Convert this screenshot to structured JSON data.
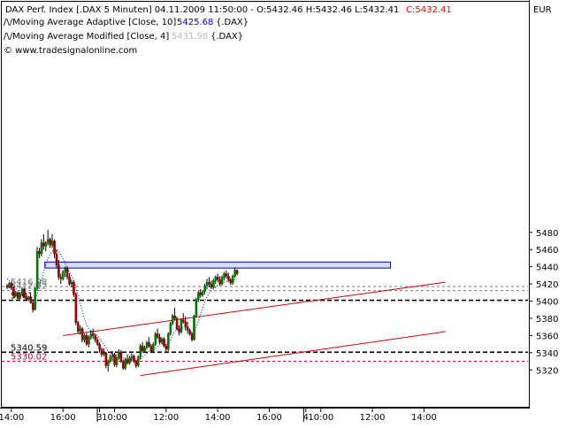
{
  "chart_data": {
    "type": "candlestick",
    "title": "DAX Perf. Index [.DAX  5 Minuten]",
    "header": {
      "title_line": "DAX Perf. Index [.DAX  5 Minuten] 04.11.2009 11:50:00 - O:5432.46 H:5432.46 L:5432.41",
      "close_value": "C:5432.41",
      "ind1_label": "/\\/Moving Average Adaptive [Close, 10]",
      "ind1_value": "5425.68",
      "ind1_suffix": "{.DAX}",
      "ind2_label": "/\\/Moving Average Modified [Close, 4]",
      "ind2_value": "5431.98",
      "ind2_suffix": "{.DAX}",
      "copyright": "© www.tradesignalonline.com",
      "currency": "EUR"
    },
    "y_axis": {
      "range": [
        5310,
        5485
      ],
      "ticks": [
        5320,
        5340,
        5360,
        5380,
        5400,
        5420,
        5440,
        5460,
        5480
      ]
    },
    "x_axis": {
      "ticks": [
        {
          "label": "14:00",
          "i": 2
        },
        {
          "label": "16:00",
          "i": 26
        },
        {
          "label": "3",
          "i": 43
        },
        {
          "label": "10:00",
          "i": 50
        },
        {
          "label": "12:00",
          "i": 74
        },
        {
          "label": "14:00",
          "i": 98
        },
        {
          "label": "16:00",
          "i": 122
        },
        {
          "label": "4",
          "i": 139
        },
        {
          "label": "10:00",
          "i": 146
        },
        {
          "label": "12:00",
          "i": 170
        },
        {
          "label": "14:00",
          "i": 194
        }
      ],
      "day_separators": [
        42,
        138
      ]
    },
    "levels": [
      {
        "value": 5416.98,
        "label": "5416.98",
        "style": "dashed",
        "color": "#777777"
      },
      {
        "value": 5412.22,
        "label": "5412.22",
        "style": "dashed",
        "color": "#777777"
      },
      {
        "value": 5401.0,
        "label": "5401",
        "style": "dashed-bold",
        "color": "#000000"
      },
      {
        "value": 5340.59,
        "label": "5340.59",
        "style": "dashed-bold",
        "color": "#000000"
      },
      {
        "value": 5330.02,
        "label": "5330.02",
        "style": "dashed",
        "color": "#cc0033"
      }
    ],
    "resistance_zone": {
      "i_start": 18,
      "i_end": 178,
      "low": 5438.5,
      "high": 5445.5,
      "fill": "#d8dcf6",
      "stroke": "#0000cc"
    },
    "trend_lines": [
      {
        "name": "upper",
        "p1": [
          26,
          5359.9
        ],
        "p2": [
          204,
          5422.0
        ],
        "color": "#dd0000"
      },
      {
        "name": "lower",
        "p1": [
          62,
          5313.5
        ],
        "p2": [
          204,
          5364.6
        ],
        "color": "#dd0000"
      }
    ],
    "candles": [
      [
        5418.0,
        5420.0,
        5414.0,
        5416.0
      ],
      [
        5416.0,
        5422.0,
        5415.0,
        5421.0
      ],
      [
        5421.0,
        5423.0,
        5413.0,
        5415.0
      ],
      [
        5415.0,
        5417.0,
        5404.0,
        5406.0
      ],
      [
        5406.0,
        5412.0,
        5405.0,
        5410.0
      ],
      [
        5410.0,
        5411.0,
        5402.0,
        5403.0
      ],
      [
        5403.0,
        5410.0,
        5402.0,
        5408.0
      ],
      [
        5408.0,
        5416.0,
        5406.0,
        5414.0
      ],
      [
        5414.0,
        5415.0,
        5404.0,
        5405.0
      ],
      [
        5405.0,
        5407.0,
        5400.0,
        5402.0
      ],
      [
        5402.0,
        5406.0,
        5400.0,
        5405.0
      ],
      [
        5405.0,
        5406.0,
        5397.0,
        5398.0
      ],
      [
        5398.0,
        5400.0,
        5387.0,
        5390.0
      ],
      [
        5390.0,
        5416.0,
        5389.0,
        5415.0
      ],
      [
        5415.0,
        5463.0,
        5412.0,
        5458.0
      ],
      [
        5458.0,
        5462.0,
        5450.0,
        5455.0
      ],
      [
        5455.0,
        5472.0,
        5452.0,
        5468.0
      ],
      [
        5468.0,
        5478.0,
        5460.0,
        5464.0
      ],
      [
        5464.0,
        5470.0,
        5458.0,
        5468.0
      ],
      [
        5468.0,
        5483.0,
        5465.0,
        5472.0
      ],
      [
        5472.0,
        5474.0,
        5462.0,
        5465.0
      ],
      [
        5465.0,
        5478.0,
        5462.0,
        5470.0
      ],
      [
        5470.0,
        5472.0,
        5450.0,
        5455.0
      ],
      [
        5455.0,
        5460.0,
        5438.0,
        5442.0
      ],
      [
        5442.0,
        5448.0,
        5425.0,
        5428.0
      ],
      [
        5428.0,
        5432.0,
        5420.0,
        5426.0
      ],
      [
        5426.0,
        5436.0,
        5424.0,
        5434.0
      ],
      [
        5434.0,
        5440.0,
        5428.0,
        5438.0
      ],
      [
        5438.0,
        5440.0,
        5425.0,
        5428.0
      ],
      [
        5428.0,
        5432.0,
        5418.0,
        5420.0
      ],
      [
        5420.0,
        5425.0,
        5416.0,
        5422.0
      ],
      [
        5422.0,
        5424.0,
        5405.0,
        5408.0
      ],
      [
        5408.0,
        5410.0,
        5372.0,
        5375.0
      ],
      [
        5375.0,
        5377.0,
        5362.0,
        5365.0
      ],
      [
        5365.0,
        5372.0,
        5361.0,
        5368.0
      ],
      [
        5368.0,
        5370.0,
        5352.0,
        5355.0
      ],
      [
        5355.0,
        5362.0,
        5352.0,
        5360.0
      ],
      [
        5360.0,
        5363.0,
        5348.0,
        5350.0
      ],
      [
        5350.0,
        5360.0,
        5346.0,
        5358.0
      ],
      [
        5358.0,
        5366.0,
        5355.0,
        5362.0
      ],
      [
        5362.0,
        5368.0,
        5356.0,
        5360.0
      ],
      [
        5360.0,
        5362.0,
        5352.0,
        5355.0
      ],
      [
        5355.0,
        5358.0,
        5348.0,
        5350.0
      ],
      [
        5350.0,
        5352.0,
        5340.0,
        5344.0
      ],
      [
        5344.0,
        5346.0,
        5335.0,
        5338.0
      ],
      [
        5338.0,
        5345.0,
        5336.0,
        5340.0
      ],
      [
        5340.0,
        5341.0,
        5322.0,
        5325.0
      ],
      [
        5325.0,
        5332.0,
        5318.0,
        5330.0
      ],
      [
        5330.0,
        5338.0,
        5328.0,
        5335.0
      ],
      [
        5335.0,
        5342.0,
        5330.0,
        5338.0
      ],
      [
        5338.0,
        5340.0,
        5324.0,
        5326.0
      ],
      [
        5326.0,
        5336.0,
        5323.0,
        5334.0
      ],
      [
        5334.0,
        5344.0,
        5332.0,
        5341.0
      ],
      [
        5341.0,
        5343.0,
        5328.0,
        5330.0
      ],
      [
        5330.0,
        5332.0,
        5320.0,
        5322.0
      ],
      [
        5322.0,
        5334.0,
        5320.0,
        5332.0
      ],
      [
        5332.0,
        5338.0,
        5326.0,
        5328.0
      ],
      [
        5328.0,
        5336.0,
        5326.0,
        5334.0
      ],
      [
        5334.0,
        5339.0,
        5330.0,
        5336.0
      ],
      [
        5336.0,
        5338.0,
        5328.0,
        5330.0
      ],
      [
        5330.0,
        5332.0,
        5322.0,
        5325.0
      ],
      [
        5325.0,
        5337.0,
        5323.0,
        5335.0
      ],
      [
        5335.0,
        5350.0,
        5332.0,
        5348.0
      ],
      [
        5348.0,
        5352.0,
        5340.0,
        5342.0
      ],
      [
        5342.0,
        5348.0,
        5340.0,
        5346.0
      ],
      [
        5346.0,
        5354.0,
        5344.0,
        5352.0
      ],
      [
        5352.0,
        5358.0,
        5346.0,
        5348.0
      ],
      [
        5348.0,
        5350.0,
        5340.0,
        5342.0
      ],
      [
        5342.0,
        5352.0,
        5340.0,
        5350.0
      ],
      [
        5350.0,
        5364.0,
        5348.0,
        5362.0
      ],
      [
        5362.0,
        5368.0,
        5356.0,
        5358.0
      ],
      [
        5358.0,
        5362.0,
        5350.0,
        5352.0
      ],
      [
        5352.0,
        5358.0,
        5350.0,
        5356.0
      ],
      [
        5356.0,
        5358.0,
        5346.0,
        5348.0
      ],
      [
        5348.0,
        5350.0,
        5340.0,
        5344.0
      ],
      [
        5344.0,
        5364.0,
        5342.0,
        5362.0
      ],
      [
        5362.0,
        5376.0,
        5360.0,
        5374.0
      ],
      [
        5374.0,
        5385.0,
        5372.0,
        5383.0
      ],
      [
        5383.0,
        5392.0,
        5378.0,
        5380.0
      ],
      [
        5380.0,
        5382.0,
        5366.0,
        5368.0
      ],
      [
        5368.0,
        5372.0,
        5360.0,
        5364.0
      ],
      [
        5364.0,
        5380.0,
        5362.0,
        5378.0
      ],
      [
        5378.0,
        5386.0,
        5374.0,
        5376.0
      ],
      [
        5376.0,
        5382.0,
        5366.0,
        5370.0
      ],
      [
        5370.0,
        5376.0,
        5362.0,
        5366.0
      ],
      [
        5366.0,
        5368.0,
        5360.0,
        5362.0
      ],
      [
        5362.0,
        5364.0,
        5353.0,
        5355.0
      ],
      [
        5355.0,
        5384.0,
        5354.0,
        5383.0
      ],
      [
        5383.0,
        5404.0,
        5381.0,
        5402.0
      ],
      [
        5402.0,
        5412.0,
        5399.0,
        5410.0
      ],
      [
        5410.0,
        5414.0,
        5404.0,
        5407.0
      ],
      [
        5407.0,
        5413.0,
        5405.0,
        5411.0
      ],
      [
        5411.0,
        5420.0,
        5408.0,
        5418.0
      ],
      [
        5418.0,
        5426.0,
        5414.0,
        5422.0
      ],
      [
        5422.0,
        5428.0,
        5416.0,
        5420.0
      ],
      [
        5420.0,
        5424.0,
        5414.0,
        5416.0
      ],
      [
        5416.0,
        5426.0,
        5414.0,
        5424.0
      ],
      [
        5424.0,
        5430.0,
        5420.0,
        5428.0
      ],
      [
        5428.0,
        5432.0,
        5422.0,
        5425.0
      ],
      [
        5425.0,
        5429.0,
        5418.0,
        5420.0
      ],
      [
        5420.0,
        5430.0,
        5418.0,
        5428.0
      ],
      [
        5428.0,
        5434.0,
        5424.0,
        5432.0
      ],
      [
        5432.0,
        5436.0,
        5426.0,
        5429.0
      ],
      [
        5429.0,
        5433.0,
        5422.0,
        5425.0
      ],
      [
        5425.0,
        5427.0,
        5419.0,
        5421.0
      ],
      [
        5421.0,
        5431.0,
        5419.0,
        5429.0
      ],
      [
        5429.0,
        5439.0,
        5427.0,
        5436.0
      ],
      [
        5436.0,
        5437.0,
        5430.0,
        5432.0
      ]
    ],
    "moving_average_adaptive": [
      5426.0,
      5424.0,
      5421.0,
      5418.0,
      5415.0,
      5412.0,
      5410.0,
      5408.0,
      5406.0,
      5404.0,
      5403.0,
      5402.0,
      5401.0,
      5403.0,
      5408.0,
      5416.0,
      5425.0,
      5434.0,
      5442.0,
      5449.0,
      5454.0,
      5458.0,
      5460.0,
      5460.0,
      5458.0,
      5454.0,
      5449.0,
      5444.0,
      5439.0,
      5434.0,
      5429.0,
      5424.0,
      5416.0,
      5407.0,
      5397.0,
      5388.0,
      5380.0,
      5373.0,
      5368.0,
      5365.0,
      5363.0,
      5362.0,
      5360.0,
      5357.0,
      5353.0,
      5350.0,
      5346.0,
      5342.0,
      5340.0,
      5339.0,
      5338.0,
      5337.0,
      5337.0,
      5336.0,
      5334.0,
      5333.0,
      5332.0,
      5332.0,
      5332.0,
      5332.0,
      5331.0,
      5331.0,
      5333.0,
      5335.0,
      5337.0,
      5339.0,
      5341.0,
      5341.0,
      5342.0,
      5345.0,
      5347.0,
      5349.0,
      5350.0,
      5350.0,
      5349.0,
      5351.0,
      5355.0,
      5360.0,
      5365.0,
      5367.0,
      5367.0,
      5368.0,
      5369.0,
      5369.0,
      5368.0,
      5366.0,
      5363.0,
      5364.0,
      5369.0,
      5377.0,
      5385.0,
      5392.0,
      5399.0,
      5405.0,
      5409.0,
      5412.0,
      5414.0,
      5416.0,
      5418.0,
      5419.0,
      5420.0,
      5422.0,
      5423.0,
      5424.0,
      5424.0,
      5424.0,
      5425.0,
      5425.68
    ]
  }
}
